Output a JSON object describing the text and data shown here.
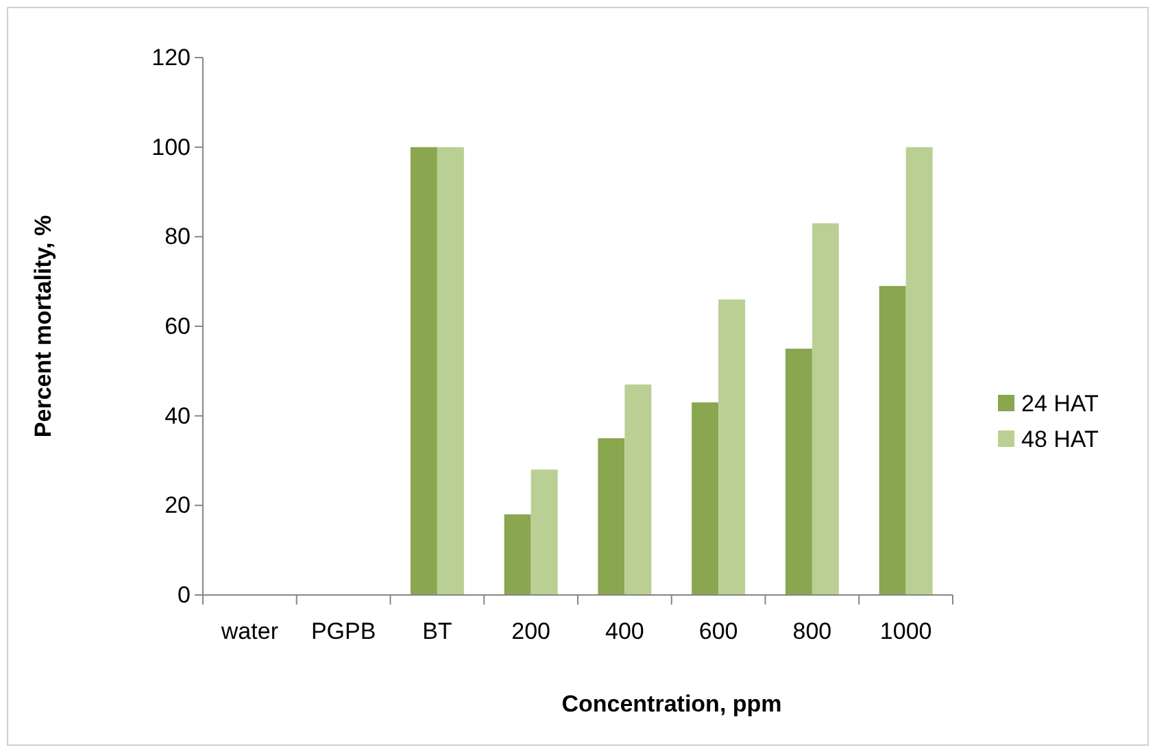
{
  "chart_data": {
    "type": "bar",
    "xlabel": "Concentration, ppm",
    "ylabel": "Percent mortality, %",
    "categories": [
      "water",
      "PGPB",
      "BT",
      "200",
      "400",
      "600",
      "800",
      "1000"
    ],
    "series": [
      {
        "name": "24 HAT",
        "color": "#8aa64f",
        "values": [
          0,
          0,
          100,
          18,
          35,
          43,
          55,
          69
        ]
      },
      {
        "name": "48 HAT",
        "color": "#bacf94",
        "values": [
          0,
          0,
          100,
          28,
          47,
          66,
          83,
          100
        ]
      }
    ],
    "ylim": [
      0,
      120
    ],
    "yticks": [
      0,
      20,
      40,
      60,
      80,
      100,
      120
    ],
    "grid": false,
    "legend": "right"
  }
}
